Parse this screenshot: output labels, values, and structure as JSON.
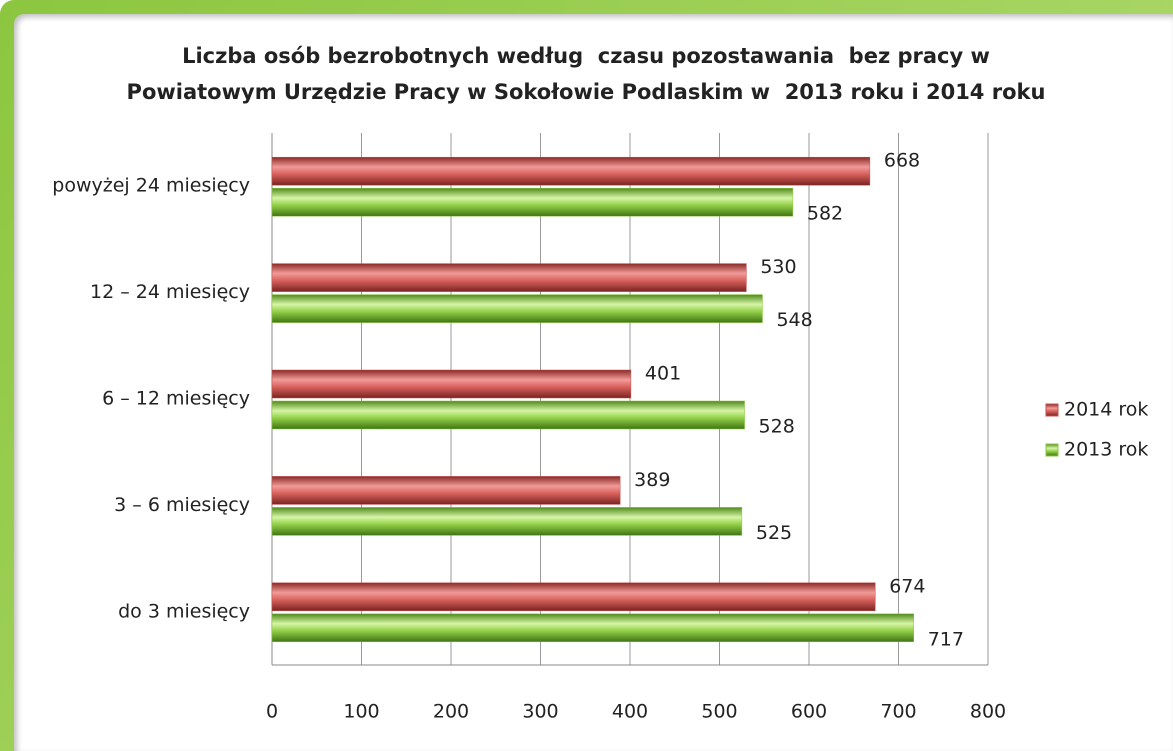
{
  "chart_data": {
    "type": "bar",
    "orientation": "horizontal",
    "title": [
      "Liczba osób bezrobotnych według  czasu pozostawania  bez pracy w",
      "Powiatowym Urzędzie Pracy w Sokołowie Podlaskim w  2013 roku i 2014 roku"
    ],
    "categories": [
      "powyżej 24 miesięcy",
      "12 – 24 miesięcy",
      "6 – 12 miesięcy",
      "3 – 6 miesięcy",
      "do 3 miesięcy"
    ],
    "series": [
      {
        "name": "2014 rok",
        "color": "#c0504d",
        "values": [
          668,
          530,
          401,
          389,
          674
        ]
      },
      {
        "name": "2013 rok",
        "color": "#8cc63f",
        "values": [
          582,
          548,
          528,
          525,
          717
        ]
      }
    ],
    "xlim": [
      0,
      800
    ],
    "xticks": [
      0,
      100,
      200,
      300,
      400,
      500,
      600,
      700,
      800
    ],
    "grid": true,
    "legend": "right"
  }
}
